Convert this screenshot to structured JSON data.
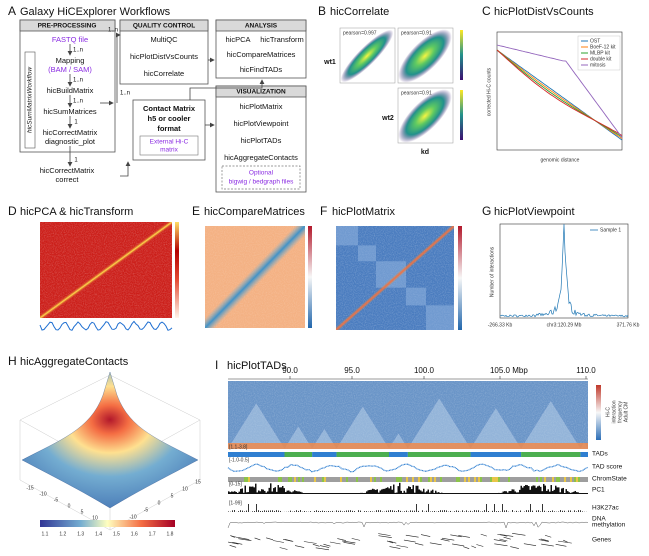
{
  "panels": [
    {
      "letter": "A",
      "title": "Galaxy HiCExplorer Workflows"
    },
    {
      "letter": "B",
      "title": "hicCorrelate"
    },
    {
      "letter": "C",
      "title": "hicPlotDistVsCounts"
    },
    {
      "letter": "D",
      "title": "hicPCA & hicTransform"
    },
    {
      "letter": "E",
      "title": "hicCompareMatrices"
    },
    {
      "letter": "F",
      "title": "hicPlotMatrix"
    },
    {
      "letter": "G",
      "title": "hicPlotViewpoint"
    },
    {
      "letter": "H",
      "title": "hicAggregateContacts"
    },
    {
      "letter": "I",
      "title": "hicPlotTADs"
    }
  ],
  "workflow": {
    "preprocessing": {
      "header": "PRE-PROCESSING",
      "side_label": "hicSumMatrixWorkflow",
      "steps": [
        "FASTQ file",
        "Mapping",
        "(BAM / SAM)",
        "hicBuildMatrix",
        "hicSumMatrices",
        "hicCorrectMatrix",
        "diagnostic_plot",
        "hicCorrectMatrix",
        "correct"
      ],
      "multiplicities": [
        "1..n",
        "1..n",
        "1..n",
        "1",
        "1"
      ]
    },
    "quality_control": {
      "header": "QUALITY CONTROL",
      "tools": [
        "MultiQC",
        "hicPlotDistVsCounts",
        "hicCorrelate"
      ]
    },
    "analysis": {
      "header": "ANALYSIS",
      "tools": [
        "hicPCA",
        "hicTransform",
        "hicCompareMatrices",
        "hicFindTADs"
      ]
    },
    "visualization": {
      "header": "VISUALIZATION",
      "tools": [
        "hicPlotMatrix",
        "hicPlotViewpoint",
        "hicPlotTADs",
        "hicAggregateContacts"
      ],
      "optional": [
        "Optional",
        "bigwig / bedgraph files"
      ]
    },
    "contact_matrix": {
      "lines": [
        "Contact Matrix",
        "h5 or cooler",
        "format"
      ],
      "external": [
        "External Hi-C",
        "matrix"
      ]
    },
    "edge_labels": [
      "1..n",
      "1..n"
    ]
  },
  "correlate": {
    "samples": [
      "wt1",
      "wt2",
      "kd"
    ],
    "pearson": [
      "pearson=0.997",
      "pearson=0.91",
      "pearson=0.91"
    ]
  },
  "dist_vs_counts": {
    "y_label": "corrected Hi-C counts",
    "x_label": "genomic distance",
    "legend": [
      "OST",
      "BoeF-12 kit",
      "MLBP kit",
      "double kit",
      "mitosis"
    ]
  },
  "viewpoint": {
    "y_label": "Number of interactions",
    "legend": "Sample 1",
    "x_labels": [
      "-266.33 Kb",
      "chr3:120.29 Mb",
      "371.76 Kb"
    ]
  },
  "aggregate": {
    "colorbar_labels": [
      "1.1",
      "1.2",
      "1.3",
      "1.4",
      "1.5",
      "1.6",
      "1.7",
      "1.8"
    ],
    "axis_labels": [
      "-15",
      "-10",
      "-5",
      "0",
      "5",
      "10",
      "15"
    ]
  },
  "tads": {
    "axis": [
      "90.0",
      "95.0",
      "100.0",
      "105.0",
      "Mbp",
      "110.0"
    ],
    "tracks": [
      "TADs",
      "TAD score",
      "ChromState",
      "PC1",
      "H3K27ac",
      "DNA",
      "methylation",
      "Genes"
    ],
    "ranges": [
      "[1.1-3.8]",
      "[-1.0-0.5]",
      "[0-15]",
      "[1-99]"
    ],
    "colorbar_title": [
      "Hi-C",
      "interaction",
      "frequency",
      "Adult CM"
    ]
  }
}
